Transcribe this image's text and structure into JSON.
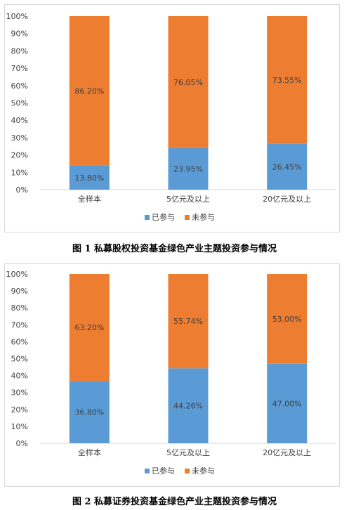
{
  "colors": {
    "participated": "#5b9bd5",
    "not_participated": "#ed7d31",
    "axis": "#d9d9d9",
    "text": "#404040"
  },
  "chart_data": [
    {
      "type": "bar",
      "stacked": true,
      "percent": true,
      "categories": [
        "全样本",
        "5亿元及以上",
        "20亿元及以上"
      ],
      "series": [
        {
          "name": "已参与",
          "values": [
            13.8,
            23.95,
            26.45
          ],
          "labels": [
            "13.80%",
            "23.95%",
            "26.45%"
          ]
        },
        {
          "name": "未参与",
          "values": [
            86.2,
            76.05,
            73.55
          ],
          "labels": [
            "86.20%",
            "76.05%",
            "73.55%"
          ]
        }
      ],
      "yticks": [
        "0%",
        "10%",
        "20%",
        "30%",
        "40%",
        "50%",
        "60%",
        "70%",
        "80%",
        "90%",
        "100%"
      ],
      "ylim": [
        0,
        100
      ],
      "legend": "bottom",
      "grid": false,
      "caption": "图 1  私募股权投资基金绿色产业主题投资参与情况"
    },
    {
      "type": "bar",
      "stacked": true,
      "percent": true,
      "categories": [
        "全样本",
        "5亿元及以上",
        "20亿元及以上"
      ],
      "series": [
        {
          "name": "已参与",
          "values": [
            36.8,
            44.26,
            47.0
          ],
          "labels": [
            "36.80%",
            "44.26%",
            "47.00%"
          ]
        },
        {
          "name": "未参与",
          "values": [
            63.2,
            55.74,
            53.0
          ],
          "labels": [
            "63.20%",
            "55.74%",
            "53.00%"
          ]
        }
      ],
      "yticks": [
        "0%",
        "10%",
        "20%",
        "30%",
        "40%",
        "50%",
        "60%",
        "70%",
        "80%",
        "90%",
        "100%"
      ],
      "ylim": [
        0,
        100
      ],
      "legend": "bottom",
      "grid": false,
      "caption": "图 2  私募证券投资基金绿色产业主题投资参与情况"
    }
  ]
}
